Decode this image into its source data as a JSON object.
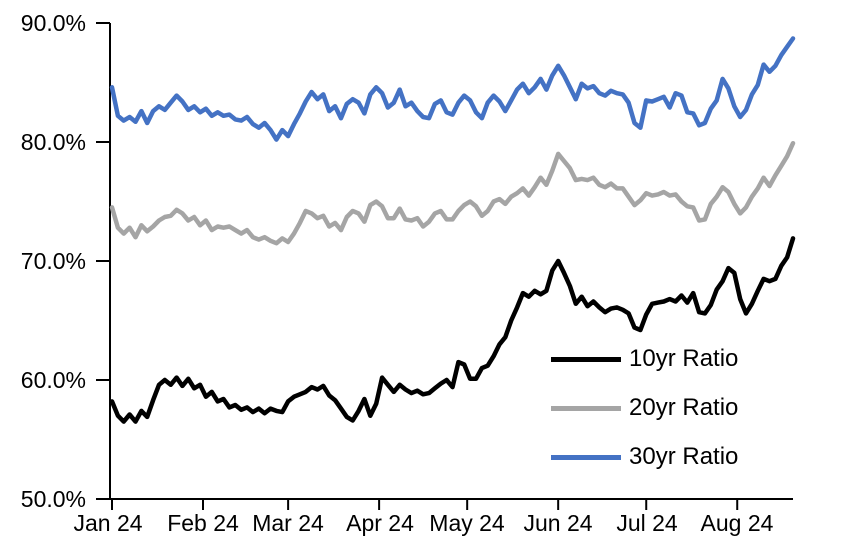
{
  "chart_data": {
    "type": "line",
    "title": "",
    "x_axis": {
      "tick_labels": [
        "Jan 24",
        "Feb 24",
        "Mar 24",
        "Apr 24",
        "May 24",
        "Jun 24",
        "Jul 24",
        "Aug 24"
      ],
      "tick_day_offsets": [
        0,
        31,
        60,
        91,
        121,
        152,
        182,
        213
      ],
      "total_days": 232,
      "grid": false
    },
    "y_axis": {
      "tick_labels": [
        "90.0%",
        "80.0%",
        "70.0%",
        "60.0%",
        "50.0%"
      ],
      "tick_values": [
        90,
        80,
        70,
        60,
        50
      ],
      "range": [
        50,
        90
      ],
      "unit": "%",
      "grid": false
    },
    "legend": {
      "position": "inside-lower-right",
      "entries": [
        "10yr Ratio",
        "20yr Ratio",
        "30yr Ratio"
      ]
    },
    "colors": {
      "black_series": "#000000",
      "gray_series": "#A5A5A5",
      "blue_series": "#4472C4",
      "axis": "#000000"
    },
    "series": [
      {
        "name": "10yr Ratio",
        "color": "#000000",
        "values": [
          58.2,
          57.0,
          56.5,
          57.1,
          56.5,
          57.4,
          56.9,
          58.3,
          59.6,
          60.0,
          59.6,
          60.2,
          59.5,
          60.1,
          59.3,
          59.6,
          58.6,
          59.0,
          58.2,
          58.4,
          57.7,
          57.9,
          57.5,
          57.7,
          57.3,
          57.6,
          57.2,
          57.6,
          57.4,
          57.3,
          58.2,
          58.6,
          58.8,
          59.0,
          59.4,
          59.2,
          59.5,
          58.7,
          58.3,
          57.6,
          56.9,
          56.6,
          57.4,
          58.4,
          57.0,
          58.0,
          60.2,
          59.6,
          59.0,
          59.6,
          59.2,
          58.9,
          59.1,
          58.8,
          58.9,
          59.3,
          59.7,
          60.0,
          59.4,
          61.5,
          61.3,
          60.1,
          60.1,
          61.0,
          61.2,
          62.0,
          63.0,
          63.6,
          65.0,
          66.1,
          67.3,
          67.0,
          67.5,
          67.2,
          67.5,
          69.2,
          70.0,
          69.0,
          67.9,
          66.4,
          67.0,
          66.2,
          66.6,
          66.1,
          65.7,
          66.0,
          66.1,
          65.9,
          65.6,
          64.4,
          64.2,
          65.5,
          66.4,
          66.5,
          66.6,
          66.8,
          66.6,
          67.1,
          66.5,
          67.3,
          65.7,
          65.6,
          66.3,
          67.6,
          68.3,
          69.4,
          69.0,
          66.8,
          65.6,
          66.4,
          67.5,
          68.5,
          68.3,
          68.5,
          69.6,
          70.3,
          71.9
        ]
      },
      {
        "name": "20yr Ratio",
        "color": "#A5A5A5",
        "values": [
          74.5,
          72.8,
          72.3,
          72.8,
          72.0,
          73.0,
          72.5,
          72.9,
          73.4,
          73.7,
          73.8,
          74.3,
          74.0,
          73.4,
          73.7,
          73.0,
          73.4,
          72.6,
          72.9,
          72.8,
          72.9,
          72.6,
          72.3,
          72.6,
          72.0,
          71.8,
          72.0,
          71.7,
          71.5,
          71.9,
          71.6,
          72.3,
          73.2,
          74.2,
          74.0,
          73.6,
          73.8,
          72.9,
          73.2,
          72.6,
          73.7,
          74.2,
          74.0,
          73.3,
          74.7,
          75.0,
          74.6,
          73.6,
          73.6,
          74.4,
          73.5,
          73.4,
          73.6,
          72.9,
          73.3,
          74.0,
          74.2,
          73.5,
          73.5,
          74.2,
          74.7,
          75.0,
          74.6,
          73.8,
          74.2,
          75.0,
          75.2,
          74.8,
          75.4,
          75.7,
          76.1,
          75.5,
          76.2,
          77.0,
          76.4,
          77.6,
          79.0,
          78.4,
          77.8,
          76.8,
          76.9,
          76.8,
          77.0,
          76.4,
          76.2,
          76.5,
          76.1,
          76.1,
          75.4,
          74.7,
          75.1,
          75.7,
          75.5,
          75.6,
          75.8,
          75.5,
          75.6,
          75.0,
          74.6,
          74.5,
          73.4,
          73.5,
          74.8,
          75.4,
          76.2,
          75.8,
          74.8,
          74.0,
          74.5,
          75.4,
          76.1,
          77.0,
          76.3,
          77.2,
          78.0,
          78.8,
          79.9
        ]
      },
      {
        "name": "30yr Ratio",
        "color": "#4472C4",
        "values": [
          84.6,
          82.2,
          81.8,
          82.1,
          81.7,
          82.6,
          81.6,
          82.6,
          83.0,
          82.7,
          83.3,
          83.9,
          83.4,
          82.7,
          83.0,
          82.5,
          82.8,
          82.2,
          82.5,
          82.2,
          82.3,
          81.9,
          81.8,
          82.1,
          81.5,
          81.2,
          81.6,
          81.0,
          80.2,
          81.0,
          80.5,
          81.5,
          82.4,
          83.4,
          84.2,
          83.6,
          84.0,
          82.6,
          83.0,
          82.0,
          83.2,
          83.6,
          83.3,
          82.4,
          84.0,
          84.6,
          84.1,
          82.9,
          83.3,
          84.4,
          83.0,
          83.3,
          82.6,
          82.1,
          82.0,
          83.2,
          83.5,
          82.5,
          82.3,
          83.3,
          83.9,
          83.5,
          82.5,
          82.0,
          83.3,
          83.9,
          83.4,
          82.6,
          83.5,
          84.4,
          84.9,
          84.1,
          84.6,
          85.3,
          84.4,
          85.6,
          86.4,
          85.6,
          84.6,
          83.6,
          84.9,
          84.5,
          84.7,
          84.1,
          83.9,
          84.3,
          84.1,
          84.0,
          83.3,
          81.6,
          81.2,
          83.5,
          83.4,
          83.6,
          83.8,
          82.9,
          84.1,
          83.9,
          82.5,
          82.4,
          81.4,
          81.6,
          82.8,
          83.5,
          85.3,
          84.5,
          83.0,
          82.1,
          82.7,
          84.0,
          84.8,
          86.5,
          85.9,
          86.4,
          87.3,
          88.0,
          88.7
        ]
      }
    ]
  }
}
